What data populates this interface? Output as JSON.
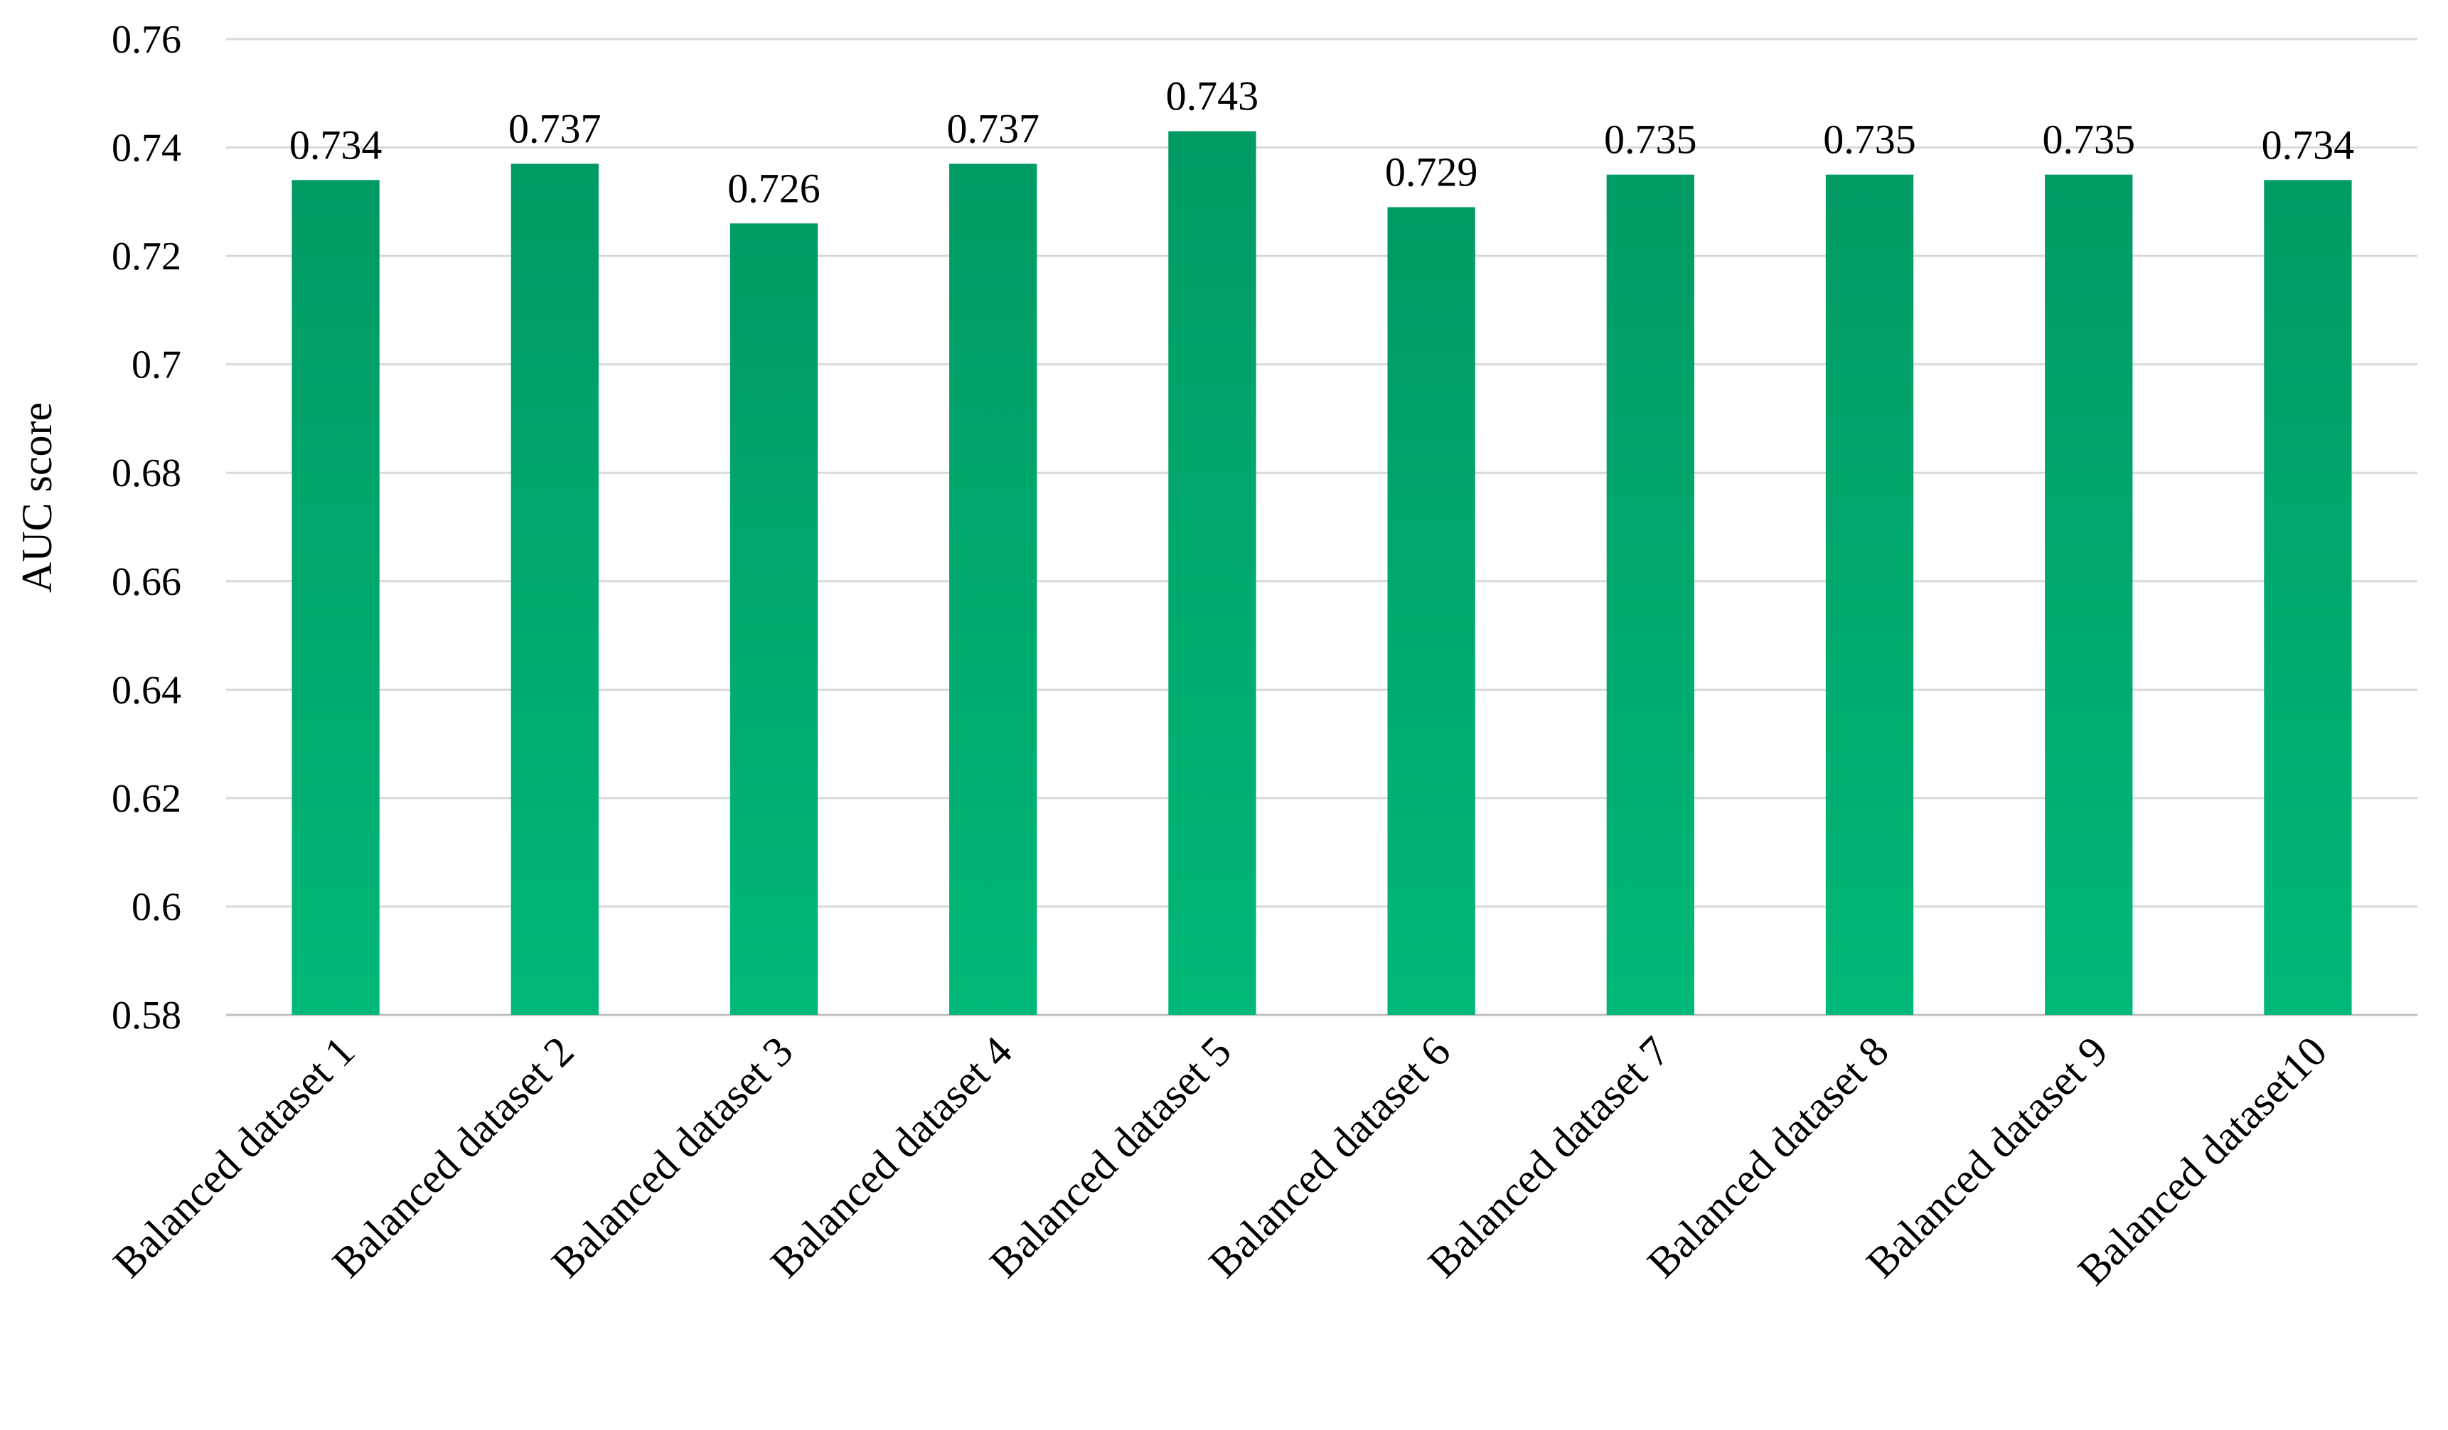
{
  "chart_data": {
    "type": "bar",
    "title": "",
    "xlabel": "",
    "ylabel": "AUC score",
    "ylim": [
      0.58,
      0.76
    ],
    "ytick_step": 0.02,
    "yticks": [
      "0.58",
      "0.6",
      "0.62",
      "0.64",
      "0.66",
      "0.68",
      "0.7",
      "0.72",
      "0.74",
      "0.76"
    ],
    "grid": true,
    "legend": "none",
    "categories": [
      "Balanced dataset 1",
      "Balanced dataset 2",
      "Balanced dataset 3",
      "Balanced dataset 4",
      "Balanced dataset 5",
      "Balanced dataset 6",
      "Balanced dataset 7",
      "Balanced dataset 8",
      "Balanced dataset 9",
      "Balanced dataset10"
    ],
    "values": [
      0.734,
      0.737,
      0.726,
      0.737,
      0.743,
      0.729,
      0.735,
      0.735,
      0.735,
      0.734
    ],
    "data_labels": [
      "0.734",
      "0.737",
      "0.726",
      "0.737",
      "0.743",
      "0.729",
      "0.735",
      "0.735",
      "0.735",
      "0.734"
    ],
    "colors": {
      "bar_top": "#009a63",
      "bar_bottom": "#00b877",
      "grid": "#d9d9d9",
      "text": "#000000"
    }
  }
}
